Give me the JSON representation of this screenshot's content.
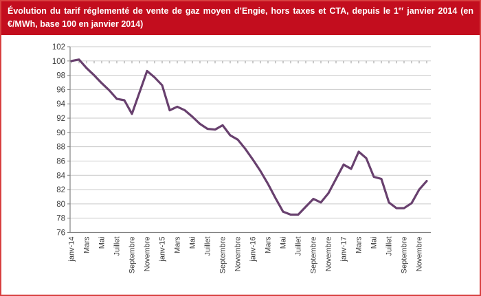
{
  "header": {
    "text_before_sup": "Évolution du tarif réglementé de vente de gaz moyen d’Engie, hors taxes et CTA, depuis le 1",
    "sup": "er",
    "text_after_sup": " janvier 2014 (en €/MWh, base 100 en janvier 2014)"
  },
  "colors": {
    "banner_bg": "#c30d1e",
    "frame_border": "#d84040",
    "line": "#68406e",
    "gridline": "#c9c9c9",
    "axis": "#808080",
    "tick": "#999999",
    "label_text": "#3b3b3b"
  },
  "chart_data": {
    "type": "line",
    "title": "Évolution du tarif réglementé de vente de gaz moyen d’Engie, hors taxes et CTA, depuis le 1er janvier 2014 (en €/MWh, base 100 en janvier 2014)",
    "x_tick_labels": [
      "janv-14",
      "Mars",
      "Mai",
      "Juillet",
      "Septembre",
      "Novembre",
      "janv-15",
      "Mars",
      "Mai",
      "Juillet",
      "Septembre",
      "Novembre",
      "janv-16",
      "Mars",
      "Mai",
      "Juillet",
      "Septembre",
      "Novembre",
      "janv-17",
      "Mars",
      "Mai",
      "Juillet",
      "Septembre",
      "Novembre"
    ],
    "months_per_point": 1,
    "points_per_label": 2,
    "values": [
      100,
      100.2,
      99.0,
      98.0,
      96.9,
      95.9,
      94.7,
      94.5,
      92.6,
      95.6,
      98.6,
      97.7,
      96.6,
      93.1,
      93.6,
      93.1,
      92.2,
      91.2,
      90.5,
      90.4,
      91.0,
      89.6,
      89.0,
      87.7,
      86.2,
      84.6,
      82.8,
      80.8,
      78.9,
      78.5,
      78.5,
      79.6,
      80.7,
      80.2,
      81.5,
      83.5,
      85.5,
      84.9,
      87.3,
      86.4,
      83.8,
      83.5,
      80.2,
      79.4,
      79.4,
      80.1,
      82.0,
      83.2
    ],
    "y_ticks": [
      102,
      100,
      98,
      96,
      94,
      92,
      90,
      88,
      86,
      84,
      82,
      80,
      78,
      76
    ],
    "ylim": [
      76,
      102
    ],
    "base_line_value": 100,
    "grid": true,
    "legend": "none"
  }
}
